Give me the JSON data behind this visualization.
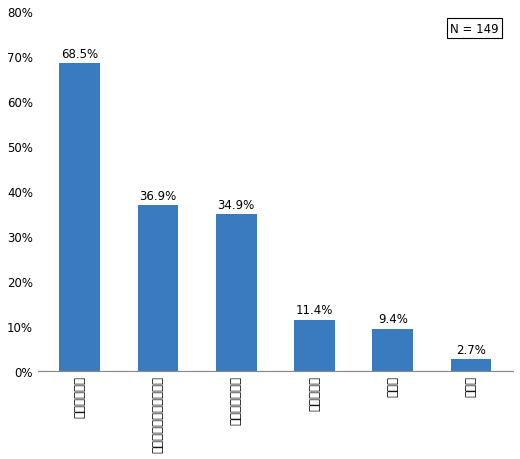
{
  "categories": [
    "株式投資信託",
    "外国で作られた投資信託",
    "公社債投資信託",
    "不動産投信",
    "ＥＴＦ",
    "無回答"
  ],
  "values": [
    68.5,
    36.9,
    34.9,
    11.4,
    9.4,
    2.7
  ],
  "bar_color": "#3a7bbf",
  "ylim": [
    0,
    80
  ],
  "yticks": [
    0,
    10,
    20,
    30,
    40,
    50,
    60,
    70,
    80
  ],
  "n_label": "N = 149",
  "label_fontsize": 8.5,
  "tick_fontsize": 8.5,
  "annotation_fontsize": 8.5,
  "bg_color": "#ffffff"
}
